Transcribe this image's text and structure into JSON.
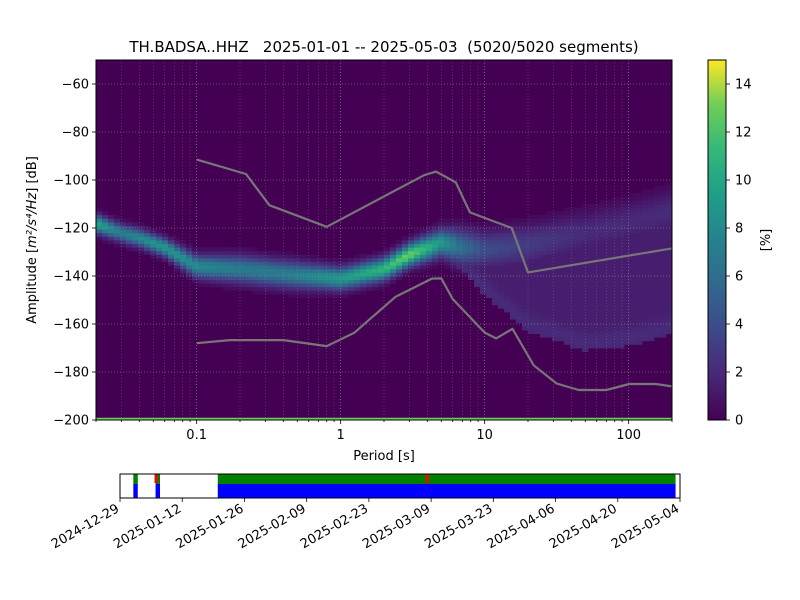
{
  "chart_data": [
    {
      "type": "heatmap",
      "title": "TH.BADSA..HHZ   2025-01-01 -- 2025-05-03  (5020/5020 segments)",
      "xlabel": "Period [s]",
      "ylabel_prefix": "Amplitude [",
      "ylabel_math": "m²/s⁴/Hz",
      "ylabel_suffix": "] [dB]",
      "xscale": "log",
      "xlim": [
        0.02,
        200
      ],
      "ylim": [
        -200,
        -50
      ],
      "xticks": [
        {
          "v": 0.1,
          "label": "0.1"
        },
        {
          "v": 1,
          "label": "1"
        },
        {
          "v": 10,
          "label": "10"
        },
        {
          "v": 100,
          "label": "100"
        }
      ],
      "yticks": [
        {
          "v": -60,
          "label": "−60"
        },
        {
          "v": -80,
          "label": "−80"
        },
        {
          "v": -100,
          "label": "−100"
        },
        {
          "v": -120,
          "label": "−120"
        },
        {
          "v": -140,
          "label": "−140"
        },
        {
          "v": -160,
          "label": "−160"
        },
        {
          "v": -180,
          "label": "−180"
        },
        {
          "v": -200,
          "label": "−200"
        }
      ],
      "grid": true,
      "colormap": "viridis",
      "colorbar": {
        "label": "[%]",
        "range": [
          0,
          15
        ],
        "ticks": [
          {
            "v": 0,
            "label": "0"
          },
          {
            "v": 2,
            "label": "2"
          },
          {
            "v": 4,
            "label": "4"
          },
          {
            "v": 6,
            "label": "6"
          },
          {
            "v": 8,
            "label": "8"
          },
          {
            "v": 10,
            "label": "10"
          },
          {
            "v": 12,
            "label": "12"
          },
          {
            "v": 14,
            "label": "14"
          }
        ]
      },
      "ppsd_ridge": [
        {
          "period": 0.02,
          "mode_db": -118,
          "width_db": 4,
          "peak_pct": 10,
          "sub_db": -118
        },
        {
          "period": 0.03,
          "mode_db": -122,
          "width_db": 4,
          "peak_pct": 7,
          "sub_db": -122
        },
        {
          "period": 0.04,
          "mode_db": -124,
          "width_db": 4,
          "peak_pct": 8,
          "sub_db": -124
        },
        {
          "period": 0.06,
          "mode_db": -128,
          "width_db": 4,
          "peak_pct": 9,
          "sub_db": -128
        },
        {
          "period": 0.1,
          "mode_db": -136,
          "width_db": 5,
          "peak_pct": 8,
          "sub_db": -136
        },
        {
          "period": 0.2,
          "mode_db": -137,
          "width_db": 6,
          "peak_pct": 7,
          "sub_db": -137
        },
        {
          "period": 0.4,
          "mode_db": -139,
          "width_db": 6,
          "peak_pct": 7,
          "sub_db": -139
        },
        {
          "period": 1,
          "mode_db": -141,
          "width_db": 5,
          "peak_pct": 9,
          "sub_db": -141
        },
        {
          "period": 2,
          "mode_db": -137,
          "width_db": 5,
          "peak_pct": 11,
          "sub_db": -137
        },
        {
          "period": 3,
          "mode_db": -131,
          "width_db": 5,
          "peak_pct": 13,
          "sub_db": -131
        },
        {
          "period": 5,
          "mode_db": -126,
          "width_db": 6,
          "peak_pct": 9,
          "sub_db": -126
        },
        {
          "period": 7,
          "mode_db": -128,
          "width_db": 8,
          "peak_pct": 6,
          "sub_db": -135
        },
        {
          "period": 10,
          "mode_db": -129,
          "width_db": 8,
          "peak_pct": 4,
          "sub_db": -145
        },
        {
          "period": 20,
          "mode_db": -127,
          "width_db": 9,
          "peak_pct": 3,
          "sub_db": -160
        },
        {
          "period": 50,
          "mode_db": -122,
          "width_db": 10,
          "peak_pct": 2,
          "sub_db": -168
        },
        {
          "period": 100,
          "mode_db": -118,
          "width_db": 10,
          "peak_pct": 2,
          "sub_db": -166
        },
        {
          "period": 200,
          "mode_db": -113,
          "width_db": 10,
          "peak_pct": 2,
          "sub_db": -161
        }
      ],
      "series": [
        {
          "values": [
            [
              0.1,
              -91.5
            ],
            [
              0.22,
              -97.5
            ],
            [
              0.32,
              -110.5
            ],
            [
              0.8,
              -119.5
            ],
            [
              3.8,
              -98
            ],
            [
              4.6,
              -96.5
            ],
            [
              6.3,
              -101
            ],
            [
              7.9,
              -113.5
            ],
            [
              15.4,
              -120
            ],
            [
              20,
              -138.5
            ],
            [
              200,
              -128.5
            ]
          ]
        },
        {
          "values": [
            [
              0.1,
              -168
            ],
            [
              0.17,
              -166.7
            ],
            [
              0.4,
              -166.7
            ],
            [
              0.8,
              -169.2
            ],
            [
              1.24,
              -163.7
            ],
            [
              2.4,
              -148.7
            ],
            [
              4.3,
              -141.1
            ],
            [
              5,
              -141
            ],
            [
              6,
              -149.6
            ],
            [
              10,
              -163.6
            ],
            [
              12,
              -166
            ],
            [
              15.6,
              -162
            ],
            [
              21.9,
              -177.2
            ],
            [
              31.6,
              -184.8
            ],
            [
              45,
              -187.5
            ],
            [
              70,
              -187.5
            ],
            [
              101,
              -185
            ],
            [
              154,
              -185
            ],
            [
              200,
              -186
            ]
          ]
        }
      ],
      "noise_floor_db": -199.5
    },
    {
      "type": "timeline",
      "xlabels": [
        "2024-12-29",
        "2025-01-12",
        "2025-01-26",
        "2025-02-09",
        "2025-02-23",
        "2025-03-09",
        "2025-03-23",
        "2025-04-06",
        "2025-04-20",
        "2025-05-04"
      ],
      "x_range": [
        "2024-12-29",
        "2025-05-04"
      ],
      "coverage_blocks": [
        {
          "start": "2025-01-01",
          "end": "2025-01-02"
        },
        {
          "start": "2025-01-06",
          "end": "2025-01-07"
        },
        {
          "start": "2025-01-20",
          "end": "2025-05-03"
        }
      ],
      "data_blocks": [
        {
          "start": "2025-01-01",
          "end": "2025-01-02"
        },
        {
          "start": "2025-01-06",
          "end": "2025-01-07"
        },
        {
          "start": "2025-01-20",
          "end": "2025-05-03"
        }
      ],
      "gap_markers": [
        "2025-01-06",
        "2025-03-08"
      ],
      "colors": {
        "coverage": "#008000",
        "data": "#0000ff",
        "gap": "#ff0000"
      }
    }
  ]
}
